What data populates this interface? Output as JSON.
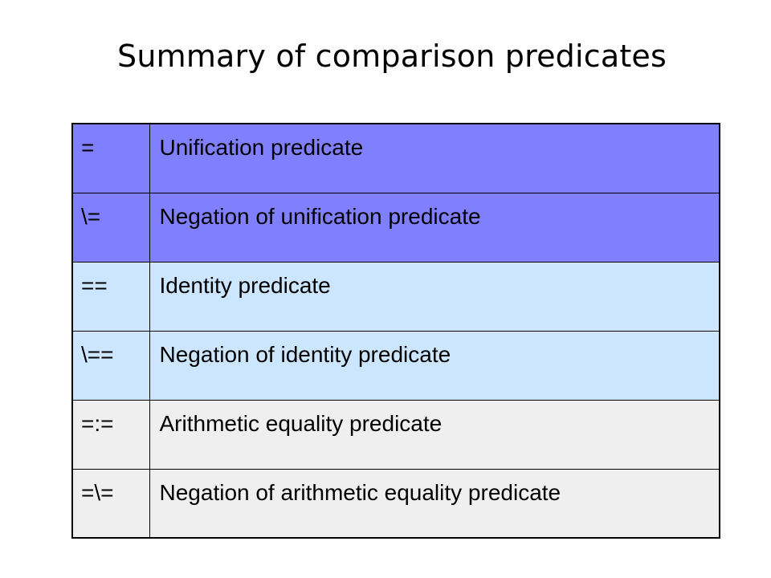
{
  "slide": {
    "title": "Summary of comparison predicates"
  },
  "table": {
    "rows": [
      {
        "symbol": "=",
        "description": "Unification predicate",
        "color": "#8080ff"
      },
      {
        "symbol": "\\=",
        "description": "Negation of unification predicate",
        "color": "#8080ff"
      },
      {
        "symbol": "==",
        "description": "Identity predicate",
        "color": "#cce6ff"
      },
      {
        "symbol": "\\==",
        "description": "Negation of identity predicate",
        "color": "#cce6ff"
      },
      {
        "symbol": "=:=",
        "description": "Arithmetic equality predicate",
        "color": "#efefef"
      },
      {
        "symbol": "=\\=",
        "description": "Negation of arithmetic equality predicate",
        "color": "#efefef"
      }
    ]
  }
}
